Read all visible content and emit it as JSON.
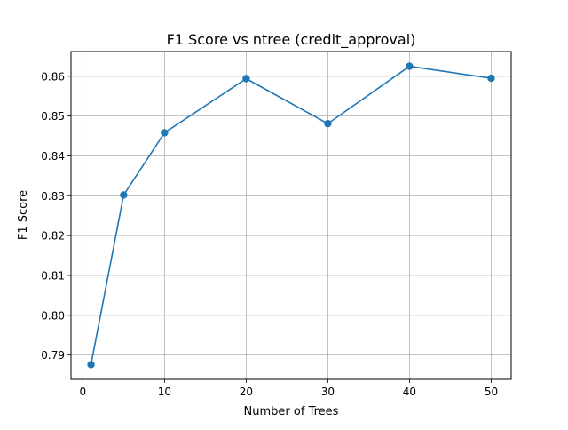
{
  "chart_data": {
    "type": "line",
    "title": "F1 Score vs ntree (credit_approval)",
    "xlabel": "Number of Trees",
    "ylabel": "F1 Score",
    "x": [
      1,
      5,
      10,
      20,
      30,
      40,
      50
    ],
    "series": [
      {
        "values": [
          0.7876,
          0.8302,
          0.8458,
          0.8594,
          0.8481,
          0.8625,
          0.8595
        ],
        "color": "#1f77b4",
        "marker": "circle"
      }
    ],
    "xlim": [
      -1.45,
      52.45
    ],
    "ylim": [
      0.7839,
      0.8662
    ],
    "xticks": [
      0,
      10,
      20,
      30,
      40,
      50
    ],
    "xtick_labels": [
      "0",
      "10",
      "20",
      "30",
      "40",
      "50"
    ],
    "yticks": [
      0.79,
      0.8,
      0.81,
      0.82,
      0.83,
      0.84,
      0.85,
      0.86
    ],
    "ytick_labels": [
      "0.79",
      "0.80",
      "0.81",
      "0.82",
      "0.83",
      "0.84",
      "0.85",
      "0.86"
    ],
    "grid": true,
    "legend": "none"
  }
}
